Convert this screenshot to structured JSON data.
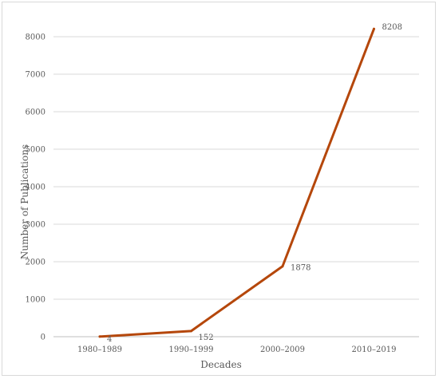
{
  "chart_data": {
    "type": "line",
    "categories": [
      "1980–1989",
      "1990–1999",
      "2000–2009",
      "2010–2019"
    ],
    "series": [
      {
        "values": [
          4,
          152,
          1878,
          8208
        ],
        "color": "#b5470b"
      }
    ],
    "data_labels": [
      "4",
      "152",
      "1878",
      "8208"
    ],
    "yticks": [
      "0",
      "1000",
      "2000",
      "3000",
      "4000",
      "5000",
      "6000",
      "7000",
      "8000"
    ],
    "xlabel": "Decades",
    "ylabel": "Number of Publications",
    "ylim": [
      0,
      9000
    ],
    "grid": true
  }
}
